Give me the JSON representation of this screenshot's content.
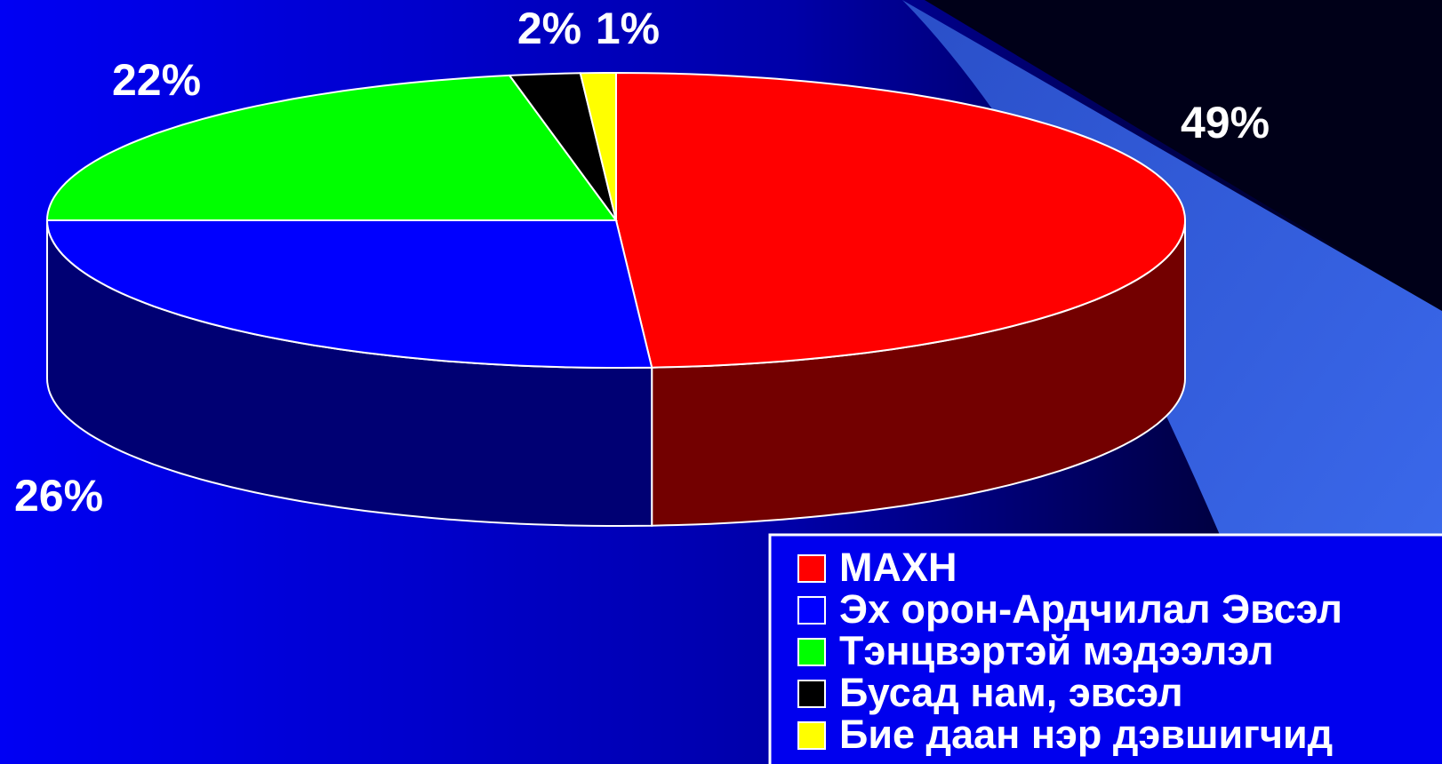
{
  "chart_data": {
    "type": "pie",
    "categories": [
      "МАХН",
      "Эх орон-Ардчилал Эвсэл",
      "Тэнцвэртэй мэдээлэл",
      "Бусад нам, эвсэл",
      "Бие даан нэр дэвшигчид"
    ],
    "values": [
      49,
      26,
      22,
      2,
      1
    ],
    "value_labels": [
      "49%",
      "26%",
      "22%",
      "2%",
      "1%"
    ],
    "colors": [
      "#ff0000",
      "#0000ff",
      "#00ff00",
      "#000000",
      "#ffff00"
    ],
    "legend": "bottom-right"
  }
}
